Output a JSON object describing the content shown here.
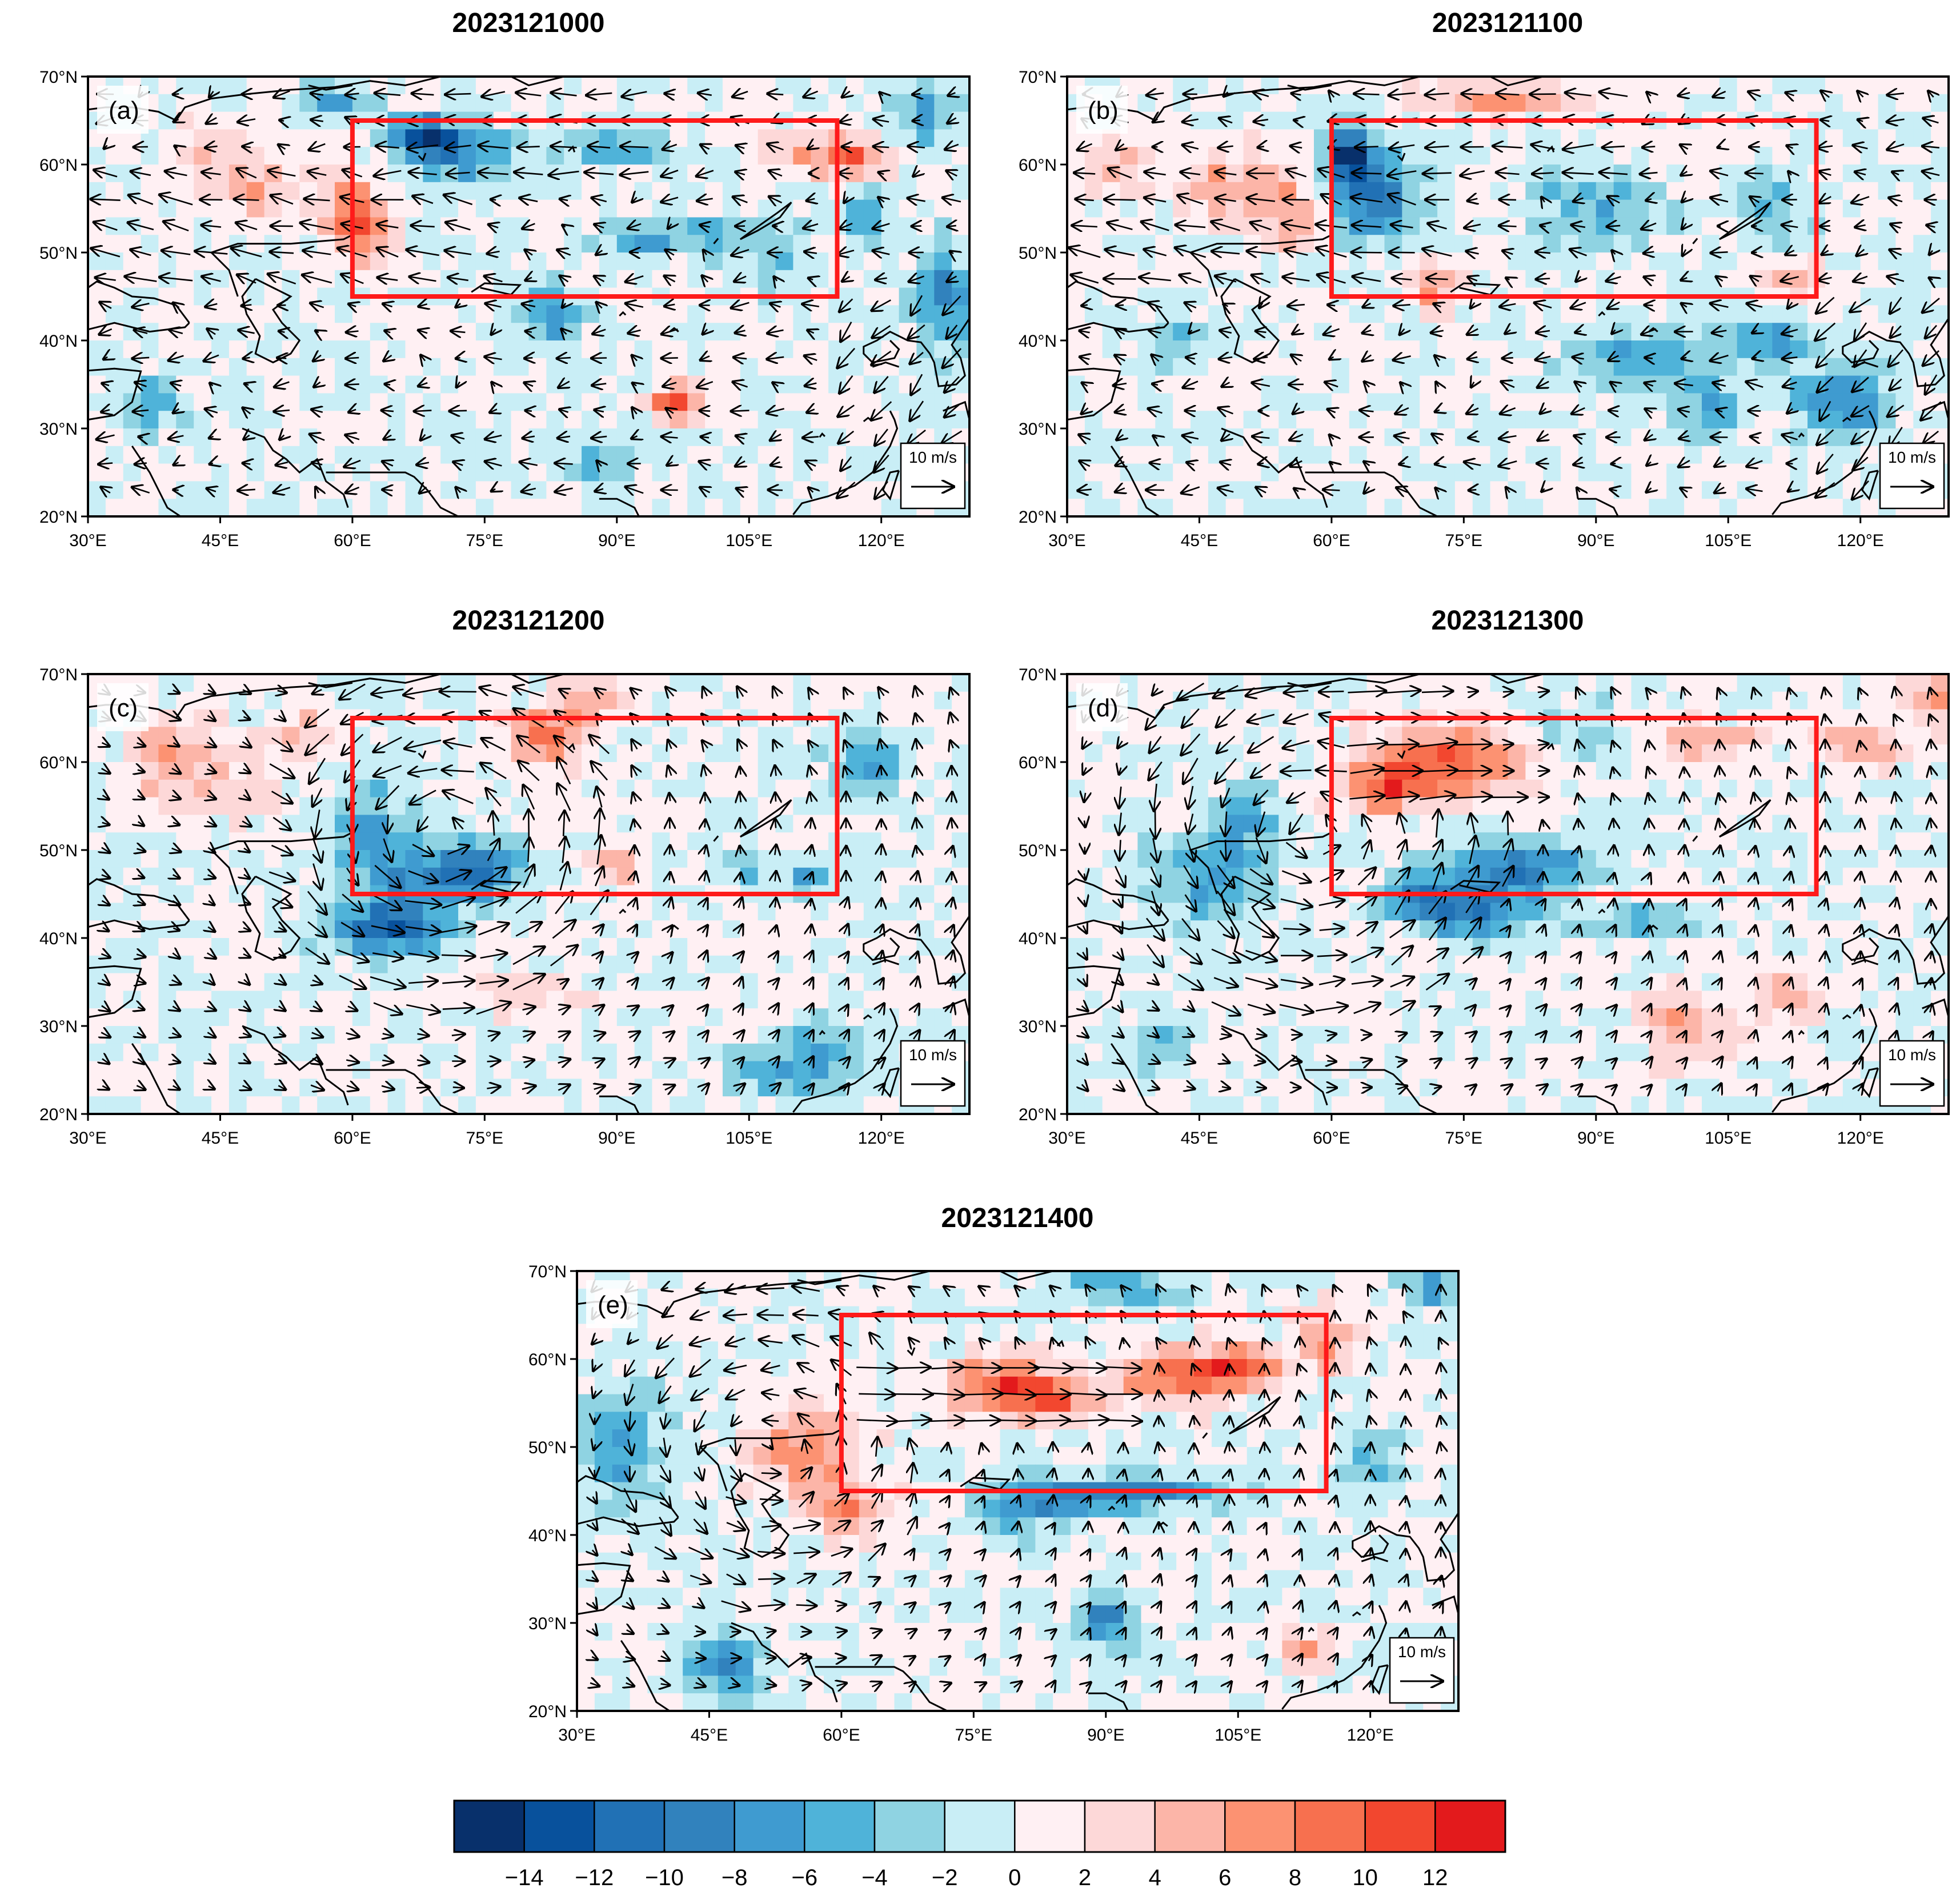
{
  "chart_data": {
    "type": "heatmap",
    "variable_units": "",
    "vector_reference": "10 m/s",
    "region_box": {
      "lon": [
        60,
        115
      ],
      "lat": [
        45,
        65
      ]
    },
    "lon_range": [
      30,
      130
    ],
    "lat_range": [
      20,
      70
    ],
    "x_ticks": [
      "30°E",
      "45°E",
      "60°E",
      "75°E",
      "90°E",
      "105°E",
      "120°E"
    ],
    "y_ticks": [
      "70°N",
      "60°N",
      "50°N",
      "40°N",
      "30°N",
      "20°N"
    ],
    "colorbar": {
      "levels": [
        -16,
        -14,
        -12,
        -10,
        -8,
        -6,
        -4,
        -2,
        0,
        2,
        4,
        6,
        8,
        10,
        12,
        14
      ],
      "labels": [
        "−14",
        "−12",
        "−10",
        "−8",
        "−6",
        "−4",
        "−2",
        "0",
        "2",
        "4",
        "6",
        "8",
        "10",
        "12"
      ],
      "colors": [
        "#08306b",
        "#08519c",
        "#2171b5",
        "#3182bd",
        "#3f9bd0",
        "#4fb3d9",
        "#8fd3e2",
        "#c9eef6",
        "#fff0f3",
        "#fdd8d8",
        "#fcb5a8",
        "#fc9272",
        "#f7704f",
        "#f2472f",
        "#e31a1c"
      ]
    },
    "panels": [
      {
        "label": "(a)",
        "title": "2023121000",
        "blobs": [
          [
            68,
            63.5,
            4,
            1.8,
            -13
          ],
          [
            72,
            61,
            7,
            3,
            -8
          ],
          [
            90,
            62,
            6,
            2,
            -6
          ],
          [
            100,
            52,
            5,
            2,
            -7
          ],
          [
            92,
            51,
            4,
            2,
            -6
          ],
          [
            82,
            43,
            4,
            3,
            -8
          ],
          [
            60,
            55,
            3,
            5,
            7
          ],
          [
            62,
            52,
            3,
            3,
            5
          ],
          [
            50,
            57,
            6,
            3,
            5
          ],
          [
            45,
            62,
            4,
            3,
            4
          ],
          [
            113,
            61,
            6,
            2.5,
            6
          ],
          [
            117,
            60.5,
            2,
            1.5,
            9
          ],
          [
            97,
            33,
            3,
            2,
            10
          ],
          [
            118,
            54,
            2,
            3,
            -6
          ],
          [
            127,
            45,
            3,
            6,
            -8
          ],
          [
            125,
            66,
            3,
            4,
            -7
          ],
          [
            88,
            26,
            4,
            2,
            -5
          ],
          [
            37,
            33,
            3,
            3,
            -6
          ],
          [
            108,
            49,
            3,
            4,
            -5
          ],
          [
            58,
            67,
            4,
            2,
            -6
          ]
        ],
        "vectors": "west"
      },
      {
        "label": "(b)",
        "title": "2023121100",
        "blobs": [
          [
            62,
            61,
            3,
            3.5,
            -14
          ],
          [
            65,
            56,
            5,
            5,
            -9
          ],
          [
            80,
            67.5,
            8,
            1.5,
            8
          ],
          [
            48,
            58,
            6,
            4,
            5
          ],
          [
            55,
            55,
            4,
            5,
            5
          ],
          [
            72,
            46,
            3,
            3,
            6
          ],
          [
            95,
            38,
            7,
            3,
            -7
          ],
          [
            110,
            40,
            6,
            3,
            -6
          ],
          [
            118,
            33,
            5,
            4,
            -9
          ],
          [
            103,
            32,
            4,
            3,
            -7
          ],
          [
            90,
            55,
            8,
            4,
            -5
          ],
          [
            110,
            55,
            4,
            4,
            -4
          ],
          [
            112,
            47,
            3,
            2,
            6
          ],
          [
            35,
            60,
            4,
            3,
            4
          ],
          [
            42,
            40,
            3,
            3,
            -4
          ]
        ],
        "vectors": "west"
      },
      {
        "label": "(c)",
        "title": "2023121200",
        "blobs": [
          [
            82,
            63,
            4,
            3,
            10
          ],
          [
            88,
            67,
            5,
            2,
            5
          ],
          [
            64,
            41,
            6,
            3,
            -12
          ],
          [
            70,
            47,
            8,
            4,
            -8
          ],
          [
            62,
            52,
            4,
            6,
            -6
          ],
          [
            75,
            48,
            4,
            3,
            -5
          ],
          [
            42,
            57,
            7,
            4,
            4
          ],
          [
            40,
            62,
            5,
            3,
            5
          ],
          [
            90,
            48,
            3,
            2,
            5
          ],
          [
            112,
            47,
            2,
            2,
            -8
          ],
          [
            105,
            48,
            3,
            3,
            -4
          ],
          [
            118,
            60,
            4,
            4,
            -6
          ],
          [
            110,
            25,
            7,
            3,
            -6
          ],
          [
            115,
            28,
            4,
            3,
            -5
          ],
          [
            80,
            34,
            6,
            2,
            5
          ],
          [
            55,
            63,
            5,
            3,
            4
          ]
        ],
        "vectors": "cyclone_c"
      },
      {
        "label": "(d)",
        "title": "2023121300",
        "blobs": [
          [
            73,
            60,
            9,
            4,
            10
          ],
          [
            66,
            57,
            5,
            3,
            7
          ],
          [
            82,
            48,
            8,
            3,
            -9
          ],
          [
            76,
            43,
            6,
            3,
            -10
          ],
          [
            70,
            45,
            4,
            3,
            -7
          ],
          [
            46,
            47,
            7,
            5,
            -6
          ],
          [
            50,
            53,
            4,
            4,
            -5
          ],
          [
            95,
            42,
            6,
            2,
            -6
          ],
          [
            103,
            62,
            5,
            2,
            6
          ],
          [
            120,
            62,
            4,
            3,
            6
          ],
          [
            130,
            67,
            5,
            3,
            8
          ],
          [
            100,
            30,
            4,
            4,
            6
          ],
          [
            112,
            33,
            4,
            3,
            5
          ],
          [
            40,
            28,
            3,
            3,
            -5
          ],
          [
            88,
            64,
            5,
            3,
            -4
          ]
        ],
        "vectors": "cyclone_d"
      },
      {
        "label": "(e)",
        "title": "2023121400",
        "blobs": [
          [
            78,
            57,
            6,
            3,
            11
          ],
          [
            84,
            55,
            4,
            2,
            9
          ],
          [
            98,
            58,
            8,
            3,
            9
          ],
          [
            105,
            59,
            5,
            2,
            8
          ],
          [
            56,
            50,
            6,
            4,
            8
          ],
          [
            60,
            43,
            5,
            3,
            7
          ],
          [
            95,
            45,
            8,
            2,
            -8
          ],
          [
            87,
            44,
            5,
            2,
            -7
          ],
          [
            80,
            43,
            4,
            3,
            -8
          ],
          [
            90,
            30,
            3,
            3,
            -9
          ],
          [
            47,
            25,
            4,
            3,
            -10
          ],
          [
            35,
            50,
            5,
            6,
            -6
          ],
          [
            113,
            27,
            3,
            2,
            7
          ],
          [
            120,
            48,
            3,
            4,
            -5
          ],
          [
            127,
            68,
            3,
            2,
            -8
          ],
          [
            92,
            68,
            6,
            2,
            -7
          ],
          [
            115,
            62,
            3,
            3,
            7
          ]
        ],
        "vectors": "cyclone_e"
      }
    ]
  }
}
